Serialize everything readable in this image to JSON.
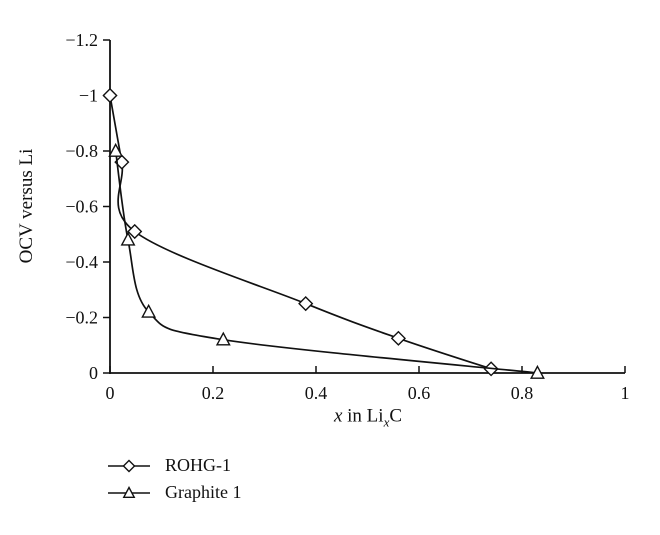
{
  "figure": {
    "background": "#ffffff",
    "ink_color": "#111111"
  },
  "chart_data": {
    "type": "line",
    "xlabel": "x in LixC",
    "xlabel_parts": {
      "var1": "x",
      "mid": " in Li",
      "sub": "x",
      "end": "C"
    },
    "ylabel": "OCV versus Li",
    "xlim": [
      0,
      1
    ],
    "ylim": [
      -1.2,
      0
    ],
    "y_axis_inverted_display": "negative values increase upward (-1.2 at top, 0 at bottom)",
    "grid": false,
    "line_color": "#111111",
    "marker_fill": "#ffffff",
    "x_ticks": {
      "values": [
        0,
        0.2,
        0.4,
        0.6,
        0.8,
        1
      ],
      "labels": [
        "0",
        "0.2",
        "0.4",
        "0.6",
        "0.8",
        "1"
      ]
    },
    "y_ticks": {
      "values": [
        -1.2,
        -1,
        -0.8,
        -0.6,
        -0.4,
        -0.2,
        0
      ],
      "labels": [
        "−1.2",
        "−1",
        "−0.8",
        "−0.6",
        "−0.4",
        "−0.2",
        "0"
      ]
    },
    "series": [
      {
        "name": "ROHG-1",
        "marker": "diamond",
        "points": [
          [
            0,
            -1.0
          ],
          [
            0.023,
            -0.76
          ],
          [
            0.048,
            -0.51
          ],
          [
            0.38,
            -0.25
          ],
          [
            0.56,
            -0.125
          ],
          [
            0.74,
            -0.015
          ]
        ]
      },
      {
        "name": "Graphite 1",
        "marker": "triangle",
        "points": [
          [
            0.011,
            -0.8
          ],
          [
            0.035,
            -0.48
          ],
          [
            0.075,
            -0.22
          ],
          [
            0.22,
            -0.12
          ],
          [
            0.83,
            0
          ]
        ]
      }
    ],
    "legend": {
      "position": "below-left",
      "items": [
        "ROHG-1",
        "Graphite 1"
      ]
    }
  }
}
